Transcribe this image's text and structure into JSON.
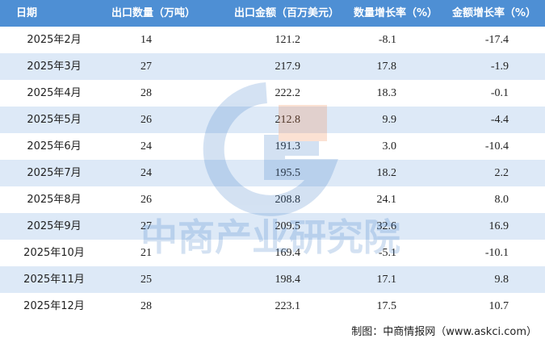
{
  "table": {
    "header": [
      "日期",
      "出口数量（万吨）",
      "出口金额（百万美元）",
      "数量增长率（%）",
      "金额增长率（%）"
    ],
    "rows": [
      [
        "2025年2月",
        "14",
        "121.2",
        "-8.1",
        "-17.4"
      ],
      [
        "2025年3月",
        "27",
        "217.9",
        "17.8",
        "-1.9"
      ],
      [
        "2025年4月",
        "28",
        "222.2",
        "18.3",
        "-0.1"
      ],
      [
        "2025年5月",
        "26",
        "212.8",
        "9.9",
        "-4.4"
      ],
      [
        "2025年6月",
        "24",
        "191.3",
        "3.0",
        "-10.4"
      ],
      [
        "2025年7月",
        "24",
        "195.5",
        "18.2",
        "2.2"
      ],
      [
        "2025年8月",
        "26",
        "208.8",
        "24.1",
        "8.0"
      ],
      [
        "2025年9月",
        "27",
        "209.5",
        "32.6",
        "16.9"
      ],
      [
        "2025年10月",
        "21",
        "169.4",
        "-5.1",
        "-10.1"
      ],
      [
        "2025年11月",
        "25",
        "198.4",
        "17.1",
        "9.8"
      ],
      [
        "2025年12月",
        "28",
        "223.1",
        "17.5",
        "10.7"
      ]
    ]
  },
  "watermark": "中商产业研究院",
  "footer": "制图：中商情报网（www.askci.com）"
}
